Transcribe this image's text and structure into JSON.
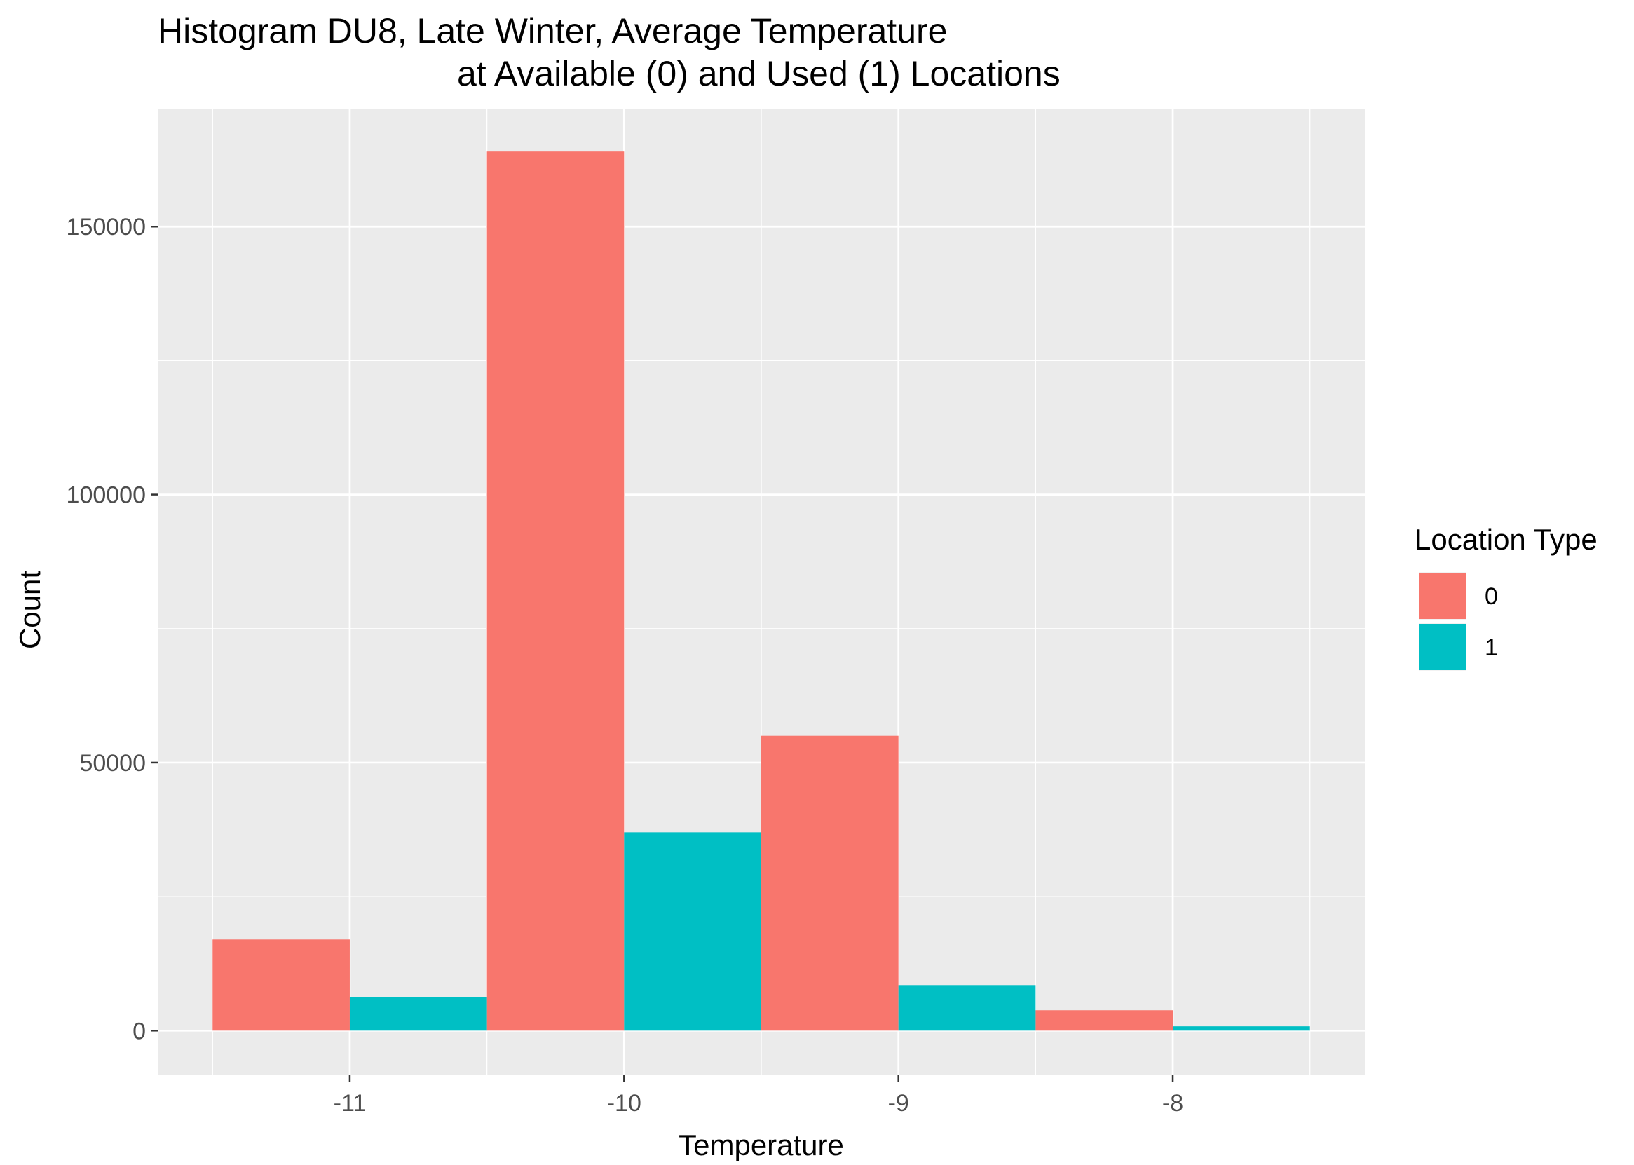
{
  "chart_data": {
    "type": "bar",
    "title_lines": [
      "Histogram DU8, Late Winter, Average Temperature",
      "at Available (0) and Used (1) Locations"
    ],
    "xlabel": "Temperature",
    "ylabel": "Count",
    "x_ticks": [
      -11,
      -10,
      -9,
      -8
    ],
    "x_tick_labels": [
      "-11",
      "-10",
      "-9",
      "-8"
    ],
    "y_ticks": [
      0,
      50000,
      100000,
      150000
    ],
    "y_tick_labels": [
      "0",
      "50000",
      "100000",
      "150000"
    ],
    "xlim": [
      -11.7,
      -7.3
    ],
    "ylim": [
      -8200,
      172000
    ],
    "bin_width": 1,
    "bin_centers": [
      -11,
      -10,
      -9,
      -8
    ],
    "position": "dodge",
    "legend": {
      "title": "Location Type",
      "position": "right"
    },
    "grid": true,
    "series": [
      {
        "name": "0",
        "color": "#F8766D",
        "values": [
          17000,
          164000,
          55000,
          3800
        ]
      },
      {
        "name": "1",
        "color": "#00BFC4",
        "values": [
          6200,
          37000,
          8500,
          800
        ]
      }
    ]
  }
}
